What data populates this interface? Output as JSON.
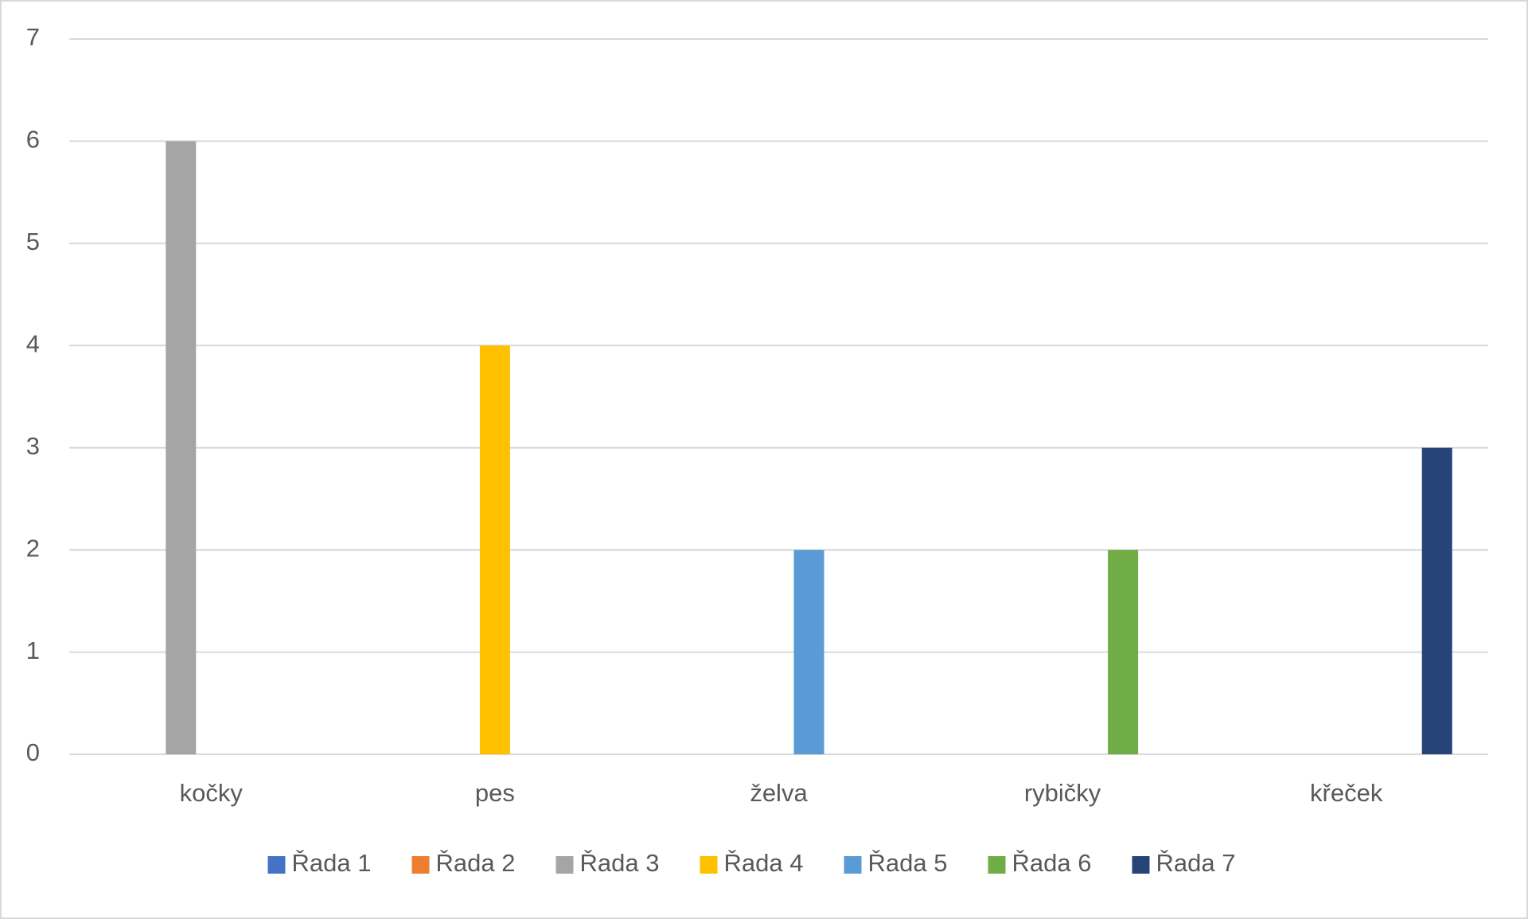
{
  "chart_data": {
    "type": "bar",
    "categories": [
      "kočky",
      "pes",
      "želva",
      "rybičky",
      "křeček"
    ],
    "series": [
      {
        "name": "Řada 1",
        "color": "#4472c4",
        "values": [
          null,
          null,
          null,
          null,
          null
        ]
      },
      {
        "name": "Řada 2",
        "color": "#ed7d31",
        "values": [
          null,
          null,
          null,
          null,
          null
        ]
      },
      {
        "name": "Řada 3",
        "color": "#a5a5a5",
        "values": [
          6,
          null,
          null,
          null,
          null
        ]
      },
      {
        "name": "Řada 4",
        "color": "#ffc000",
        "values": [
          null,
          4,
          null,
          null,
          null
        ]
      },
      {
        "name": "Řada 5",
        "color": "#5b9bd5",
        "values": [
          null,
          null,
          2,
          null,
          null
        ]
      },
      {
        "name": "Řada 6",
        "color": "#70ad47",
        "values": [
          null,
          null,
          null,
          2,
          null
        ]
      },
      {
        "name": "Řada 7",
        "color": "#264478",
        "values": [
          null,
          null,
          null,
          null,
          3
        ]
      }
    ],
    "ylim": [
      0,
      7
    ],
    "yticks": [
      0,
      1,
      2,
      3,
      4,
      5,
      6,
      7
    ],
    "grid": true,
    "legend": "bottom"
  }
}
